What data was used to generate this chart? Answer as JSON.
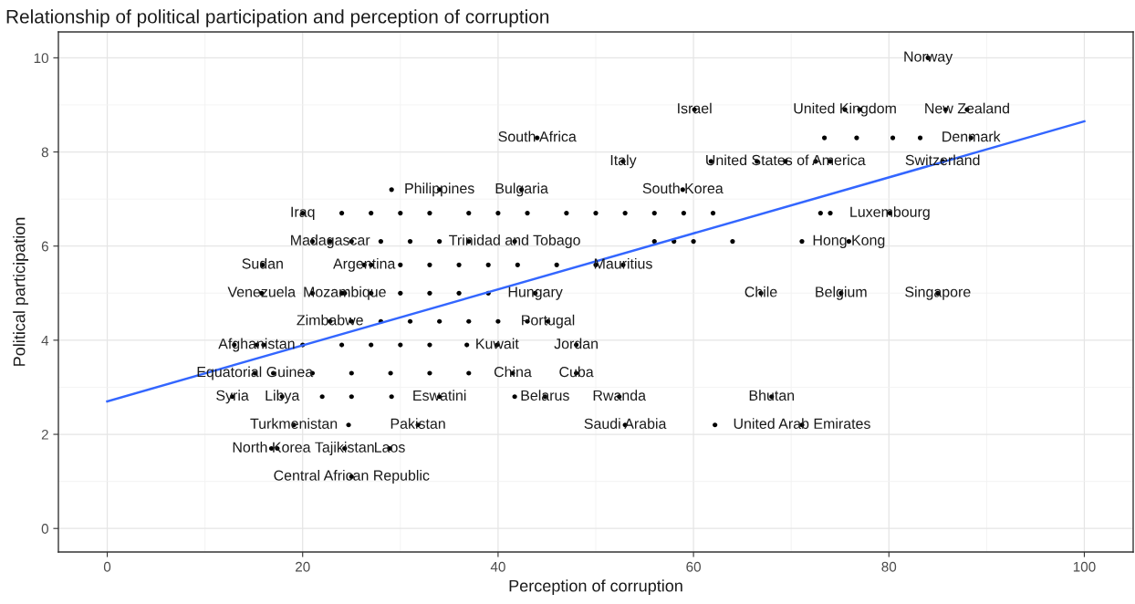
{
  "chart_data": {
    "type": "scatter",
    "title": "Relationship of political participation and perception of corruption",
    "xlabel": "Perception of corruption",
    "ylabel": "Political participation",
    "xlim": [
      -5,
      105
    ],
    "ylim": [
      -0.5,
      10.55
    ],
    "xticks": [
      0,
      20,
      40,
      60,
      80,
      100
    ],
    "yticks": [
      0,
      2,
      4,
      6,
      8,
      10
    ],
    "grid": true,
    "legend": false,
    "series": [
      {
        "color": "#000000",
        "marker": "circle",
        "x": [
          84.0,
          60.1,
          44.0,
          52.8,
          58.9,
          75.5,
          77.0,
          85.8,
          88.0,
          73.4,
          76.7,
          80.4,
          83.2,
          88.4,
          61.8,
          66.5,
          69.4,
          72.5,
          74.0,
          85.5,
          73.0,
          74.0,
          80.1,
          71.1,
          75.9,
          66.9,
          75.1,
          85.0,
          68.0,
          53.0,
          62.2,
          71.1,
          52.4,
          44.8,
          41.7,
          48.0,
          48.0,
          39.9,
          36.8,
          41.5,
          43.8,
          45.1,
          52.8,
          41.7,
          15.9,
          15.8,
          20.0,
          22.8,
          22.8,
          24.3,
          26.3,
          15.1,
          12.8,
          17.9,
          29.1,
          34.0,
          19.1,
          24.7,
          31.8,
          16.8,
          17.4,
          24.3,
          28.9,
          25.0,
          15.3,
          29.1,
          34.0,
          42.4,
          24,
          27,
          30,
          33,
          37,
          40,
          43,
          47,
          50,
          53,
          56,
          59,
          62,
          21,
          25,
          28,
          31,
          34,
          37,
          56,
          58,
          60,
          64,
          27,
          30,
          33,
          36,
          39,
          42,
          46,
          50,
          21,
          24,
          27,
          30,
          33,
          36,
          39,
          25,
          28,
          31,
          34,
          37,
          40,
          43,
          13,
          16,
          20,
          24,
          27,
          30,
          33,
          17,
          21,
          25,
          29,
          33,
          37,
          22,
          25
        ],
        "values": [
          10,
          8.9,
          8.3,
          7.8,
          7.2,
          8.9,
          8.9,
          8.9,
          8.9,
          8.3,
          8.3,
          8.3,
          8.3,
          8.3,
          7.8,
          7.8,
          7.8,
          7.8,
          7.8,
          7.8,
          6.7,
          6.7,
          6.7,
          6.1,
          6.1,
          5.0,
          5.0,
          5.0,
          2.8,
          2.2,
          2.2,
          2.2,
          2.8,
          2.8,
          2.8,
          3.9,
          3.3,
          3.9,
          3.9,
          3.3,
          5.0,
          4.4,
          5.6,
          6.1,
          5.6,
          5.0,
          6.7,
          6.1,
          4.4,
          5.0,
          5.6,
          3.3,
          2.8,
          2.8,
          2.8,
          2.8,
          2.2,
          2.2,
          2.2,
          1.7,
          1.7,
          1.7,
          1.7,
          1.1,
          3.9,
          7.2,
          7.2,
          7.2,
          6.7,
          6.7,
          6.7,
          6.7,
          6.7,
          6.7,
          6.7,
          6.7,
          6.7,
          6.7,
          6.7,
          6.7,
          6.7,
          6.1,
          6.1,
          6.1,
          6.1,
          6.1,
          6.1,
          6.1,
          6.1,
          6.1,
          6.1,
          5.6,
          5.6,
          5.6,
          5.6,
          5.6,
          5.6,
          5.6,
          5.6,
          5.0,
          5.0,
          5.0,
          5.0,
          5.0,
          5.0,
          5.0,
          4.4,
          4.4,
          4.4,
          4.4,
          4.4,
          4.4,
          4.4,
          3.9,
          3.9,
          3.9,
          3.9,
          3.9,
          3.9,
          3.9,
          3.3,
          3.3,
          3.3,
          3.3,
          3.3,
          3.3,
          2.8,
          2.8
        ]
      },
      {
        "type": "line",
        "color": "#3366ff",
        "x": [
          0,
          100
        ],
        "values": [
          2.7,
          8.65
        ]
      }
    ],
    "annotations": [
      {
        "text": "Norway",
        "x": 84.0,
        "y": 10
      },
      {
        "text": "Israel",
        "x": 60.1,
        "y": 8.9
      },
      {
        "text": "South Africa",
        "x": 44.0,
        "y": 8.3
      },
      {
        "text": "Italy",
        "x": 52.8,
        "y": 7.8
      },
      {
        "text": "South Korea",
        "x": 58.9,
        "y": 7.2
      },
      {
        "text": "United Kingdom",
        "x": 75.5,
        "y": 8.9
      },
      {
        "text": "New Zealand",
        "x": 88.0,
        "y": 8.9
      },
      {
        "text": "Denmark",
        "x": 88.4,
        "y": 8.3
      },
      {
        "text": "United States of America",
        "x": 69.4,
        "y": 7.8
      },
      {
        "text": "Switzerland",
        "x": 85.5,
        "y": 7.8
      },
      {
        "text": "Luxembourg",
        "x": 80.1,
        "y": 6.7
      },
      {
        "text": "Hong Kong",
        "x": 75.9,
        "y": 6.1
      },
      {
        "text": "Chile",
        "x": 66.9,
        "y": 5.0
      },
      {
        "text": "Belgium",
        "x": 75.1,
        "y": 5.0
      },
      {
        "text": "Singapore",
        "x": 85.0,
        "y": 5.0
      },
      {
        "text": "Bhutan",
        "x": 68.0,
        "y": 2.8
      },
      {
        "text": "Saudi Arabia",
        "x": 53.0,
        "y": 2.2
      },
      {
        "text": "United Arab Emirates",
        "x": 71.1,
        "y": 2.2
      },
      {
        "text": "Rwanda",
        "x": 52.4,
        "y": 2.8
      },
      {
        "text": "Belarus",
        "x": 44.8,
        "y": 2.8
      },
      {
        "text": "Jordan",
        "x": 48.0,
        "y": 3.9
      },
      {
        "text": "Cuba",
        "x": 48.0,
        "y": 3.3
      },
      {
        "text": "Kuwait",
        "x": 39.9,
        "y": 3.9
      },
      {
        "text": "China",
        "x": 41.5,
        "y": 3.3
      },
      {
        "text": "Hungary",
        "x": 43.8,
        "y": 5.0
      },
      {
        "text": "Portugal",
        "x": 45.1,
        "y": 4.4
      },
      {
        "text": "Mauritius",
        "x": 52.8,
        "y": 5.6
      },
      {
        "text": "Trinidad and Tobago",
        "x": 41.7,
        "y": 6.1
      },
      {
        "text": "Sudan",
        "x": 15.9,
        "y": 5.6
      },
      {
        "text": "Venezuela",
        "x": 15.8,
        "y": 5.0
      },
      {
        "text": "Iraq",
        "x": 20.0,
        "y": 6.7
      },
      {
        "text": "Madagascar",
        "x": 22.8,
        "y": 6.1
      },
      {
        "text": "Zimbabwe",
        "x": 22.8,
        "y": 4.4
      },
      {
        "text": "Mozambique",
        "x": 24.3,
        "y": 5.0
      },
      {
        "text": "Argentina",
        "x": 26.3,
        "y": 5.6
      },
      {
        "text": "Equatorial Guinea",
        "x": 15.1,
        "y": 3.3
      },
      {
        "text": "Syria",
        "x": 12.8,
        "y": 2.8
      },
      {
        "text": "Libya",
        "x": 17.9,
        "y": 2.8
      },
      {
        "text": "Eswatini",
        "x": 34.0,
        "y": 2.8
      },
      {
        "text": "Turkmenistan",
        "x": 19.1,
        "y": 2.2
      },
      {
        "text": "Pakistan",
        "x": 31.8,
        "y": 2.2
      },
      {
        "text": "North Korea",
        "x": 16.8,
        "y": 1.7
      },
      {
        "text": "Tajikistan",
        "x": 24.3,
        "y": 1.7
      },
      {
        "text": "Laos",
        "x": 28.9,
        "y": 1.7
      },
      {
        "text": "Central African Republic",
        "x": 25.0,
        "y": 1.1
      },
      {
        "text": "Afghanistan",
        "x": 15.3,
        "y": 3.9
      },
      {
        "text": "Philippines",
        "x": 34.0,
        "y": 7.2
      },
      {
        "text": "Bulgaria",
        "x": 42.4,
        "y": 7.2
      }
    ]
  }
}
